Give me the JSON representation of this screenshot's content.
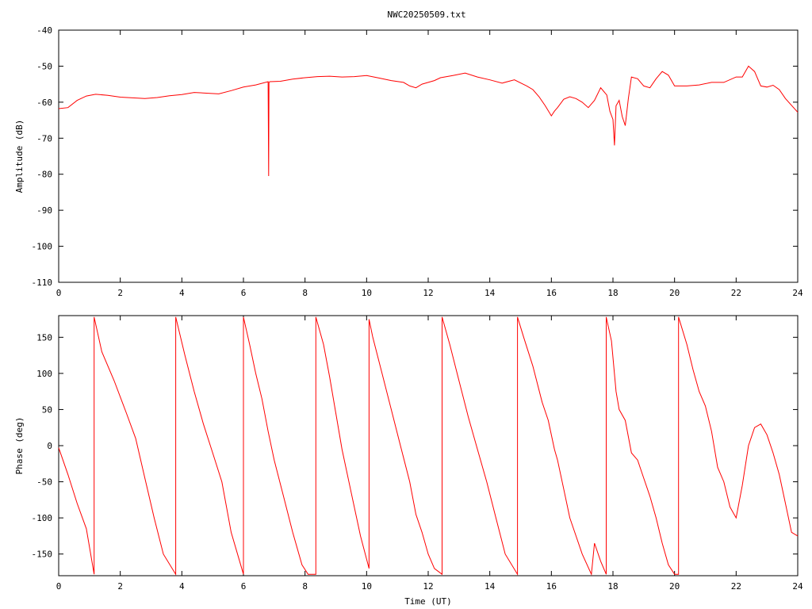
{
  "chart_data": [
    {
      "type": "line",
      "title": "NWC20250509.txt",
      "xlabel": "",
      "ylabel": "Amplitude (dB)",
      "xlim": [
        0,
        24
      ],
      "ylim": [
        -110,
        -40
      ],
      "x_ticks": [
        "0",
        "2",
        "4",
        "6",
        "8",
        "10",
        "12",
        "14",
        "16",
        "18",
        "20",
        "22",
        "24"
      ],
      "y_ticks": [
        "-40",
        "-50",
        "-60",
        "-70",
        "-80",
        "-90",
        "-100",
        "-110"
      ],
      "grid": false,
      "series": [
        {
          "color": "#ff0000",
          "x": [
            0,
            0.3,
            0.6,
            0.9,
            1.2,
            1.6,
            2.0,
            2.4,
            2.8,
            3.2,
            3.6,
            4.0,
            4.4,
            4.8,
            5.2,
            5.6,
            6.0,
            6.4,
            6.8,
            6.82,
            6.83,
            6.86,
            7.2,
            7.6,
            8.0,
            8.4,
            8.8,
            9.2,
            9.6,
            10.0,
            10.4,
            10.8,
            11.2,
            11.4,
            11.6,
            11.8,
            12.0,
            12.2,
            12.4,
            12.8,
            13.2,
            13.6,
            14.0,
            14.4,
            14.8,
            15.2,
            15.4,
            15.6,
            15.8,
            16.0,
            16.1,
            16.2,
            16.4,
            16.6,
            16.8,
            17.0,
            17.2,
            17.4,
            17.6,
            17.8,
            17.9,
            18.0,
            18.05,
            18.1,
            18.2,
            18.3,
            18.4,
            18.5,
            18.6,
            18.8,
            19.0,
            19.2,
            19.4,
            19.6,
            19.8,
            20.0,
            20.4,
            20.8,
            21.2,
            21.6,
            22.0,
            22.2,
            22.4,
            22.6,
            22.8,
            23.0,
            23.2,
            23.4,
            23.6,
            24.0
          ],
          "values": [
            -61.8,
            -61.5,
            -59.5,
            -58.3,
            -57.8,
            -58.1,
            -58.6,
            -58.8,
            -59.0,
            -58.7,
            -58.2,
            -57.9,
            -57.3,
            -57.5,
            -57.7,
            -56.8,
            -55.8,
            -55.2,
            -54.3,
            -80.5,
            -54.5,
            -54.3,
            -54.2,
            -53.6,
            -53.2,
            -52.9,
            -52.8,
            -53.0,
            -52.9,
            -52.6,
            -53.3,
            -54.0,
            -54.5,
            -55.5,
            -56.0,
            -55.0,
            -54.5,
            -54.0,
            -53.2,
            -52.6,
            -51.9,
            -53.0,
            -53.8,
            -54.7,
            -53.8,
            -55.5,
            -56.5,
            -58.5,
            -61.0,
            -63.8,
            -62.5,
            -61.5,
            -59.2,
            -58.5,
            -59.0,
            -60.0,
            -61.5,
            -59.5,
            -56.0,
            -58.0,
            -62.5,
            -64.8,
            -72.0,
            -61.0,
            -59.5,
            -64.0,
            -66.5,
            -59.0,
            -53.0,
            -53.5,
            -55.5,
            -56.0,
            -53.5,
            -51.5,
            -52.5,
            -55.5,
            -55.5,
            -55.2,
            -54.5,
            -54.5,
            -53.0,
            -53.0,
            -50.0,
            -51.5,
            -55.5,
            -55.8,
            -55.3,
            -56.5,
            -59.0,
            -62.8
          ]
        }
      ]
    },
    {
      "type": "line",
      "title": "",
      "xlabel": "Time (UT)",
      "ylabel": "Phase (deg)",
      "xlim": [
        0,
        24
      ],
      "ylim": [
        -180,
        180
      ],
      "x_ticks": [
        "0",
        "2",
        "4",
        "6",
        "8",
        "10",
        "12",
        "14",
        "16",
        "18",
        "20",
        "22",
        "24"
      ],
      "y_ticks": [
        "150",
        "100",
        "50",
        "0",
        "-50",
        "-100",
        "-150"
      ],
      "grid": false,
      "series": [
        {
          "color": "#ff0000",
          "x": [
            0,
            0.3,
            0.6,
            0.9,
            1.15,
            1.15,
            1.4,
            1.8,
            2.2,
            2.5,
            2.8,
            3.1,
            3.4,
            3.8,
            3.8,
            4.1,
            4.4,
            4.7,
            5.0,
            5.3,
            5.6,
            6.0,
            6.0,
            6.2,
            6.4,
            6.6,
            6.8,
            7.0,
            7.3,
            7.6,
            7.9,
            8.1,
            8.35,
            8.35,
            8.6,
            8.8,
            9.0,
            9.2,
            9.5,
            9.8,
            10.08,
            10.08,
            10.2,
            10.5,
            10.8,
            11.1,
            11.4,
            11.6,
            11.8,
            12.0,
            12.2,
            12.45,
            12.45,
            12.7,
            13.0,
            13.3,
            13.6,
            13.9,
            14.2,
            14.5,
            14.9,
            14.9,
            15.1,
            15.4,
            15.7,
            15.9,
            16.1,
            16.2,
            16.4,
            16.6,
            16.8,
            17.0,
            17.3,
            17.4,
            17.6,
            17.78,
            17.78,
            17.95,
            18.1,
            18.2,
            18.4,
            18.6,
            18.8,
            19.0,
            19.2,
            19.4,
            19.6,
            19.8,
            20.0,
            20.13,
            20.13,
            20.4,
            20.6,
            20.8,
            21.0,
            21.2,
            21.4,
            21.6,
            21.8,
            22.0,
            22.2,
            22.4,
            22.6,
            22.8,
            23.0,
            23.2,
            23.4,
            23.6,
            23.8,
            24.0
          ],
          "values": [
            -3,
            -40,
            -80,
            -115,
            -178,
            178,
            130,
            90,
            45,
            10,
            -45,
            -100,
            -150,
            -178,
            178,
            125,
            75,
            30,
            -10,
            -50,
            -120,
            -178,
            178,
            140,
            100,
            65,
            20,
            -20,
            -70,
            -120,
            -165,
            -178,
            -178,
            178,
            140,
            95,
            45,
            -5,
            -65,
            -125,
            -170,
            175,
            150,
            100,
            50,
            0,
            -50,
            -95,
            -120,
            -150,
            -170,
            -178,
            178,
            140,
            90,
            40,
            -5,
            -50,
            -100,
            -150,
            -178,
            178,
            150,
            110,
            60,
            35,
            -5,
            -20,
            -60,
            -100,
            -125,
            -150,
            -178,
            -135,
            -160,
            -178,
            178,
            145,
            75,
            50,
            35,
            -10,
            -20,
            -45,
            -70,
            -100,
            -135,
            -165,
            -178,
            -178,
            178,
            140,
            105,
            75,
            55,
            20,
            -30,
            -50,
            -85,
            -100,
            -55,
            0,
            25,
            30,
            15,
            -10,
            -40,
            -80,
            -120,
            -125
          ]
        }
      ]
    }
  ]
}
